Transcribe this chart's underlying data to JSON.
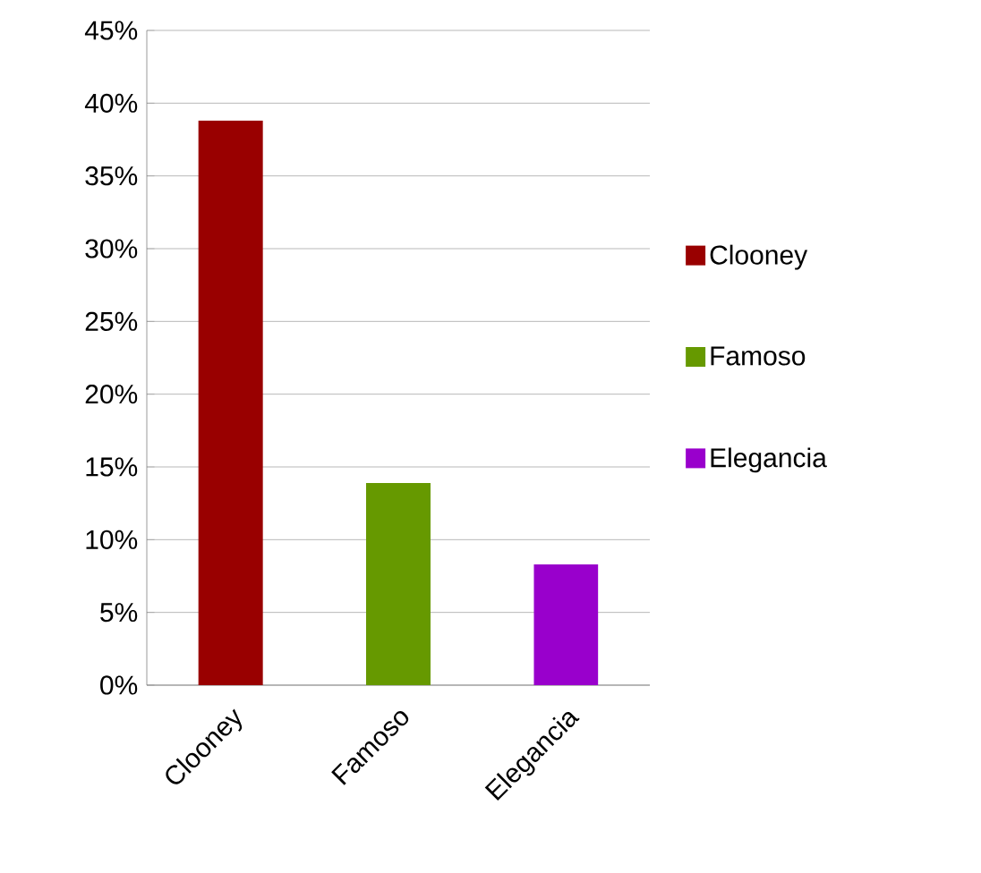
{
  "chart_data": {
    "type": "bar",
    "categories": [
      "Clooney",
      "Famoso",
      "Elegancia"
    ],
    "series": [
      {
        "name": "Clooney",
        "color": "#990000",
        "values": [
          38.8,
          null,
          null
        ]
      },
      {
        "name": "Famoso",
        "color": "#669900",
        "values": [
          null,
          13.9,
          null
        ]
      },
      {
        "name": "Elegancia",
        "color": "#9900cc",
        "values": [
          null,
          null,
          8.3
        ]
      }
    ],
    "ylim": [
      0,
      45
    ],
    "yticks": [
      {
        "value": 0,
        "label": "0%"
      },
      {
        "value": 5,
        "label": "5%"
      },
      {
        "value": 10,
        "label": "10%"
      },
      {
        "value": 15,
        "label": "15%"
      },
      {
        "value": 20,
        "label": "20%"
      },
      {
        "value": 25,
        "label": "25%"
      },
      {
        "value": 30,
        "label": "30%"
      },
      {
        "value": 35,
        "label": "35%"
      },
      {
        "value": 40,
        "label": "40%"
      },
      {
        "value": 45,
        "label": "45%"
      }
    ],
    "grid": "y",
    "legend": "right"
  }
}
